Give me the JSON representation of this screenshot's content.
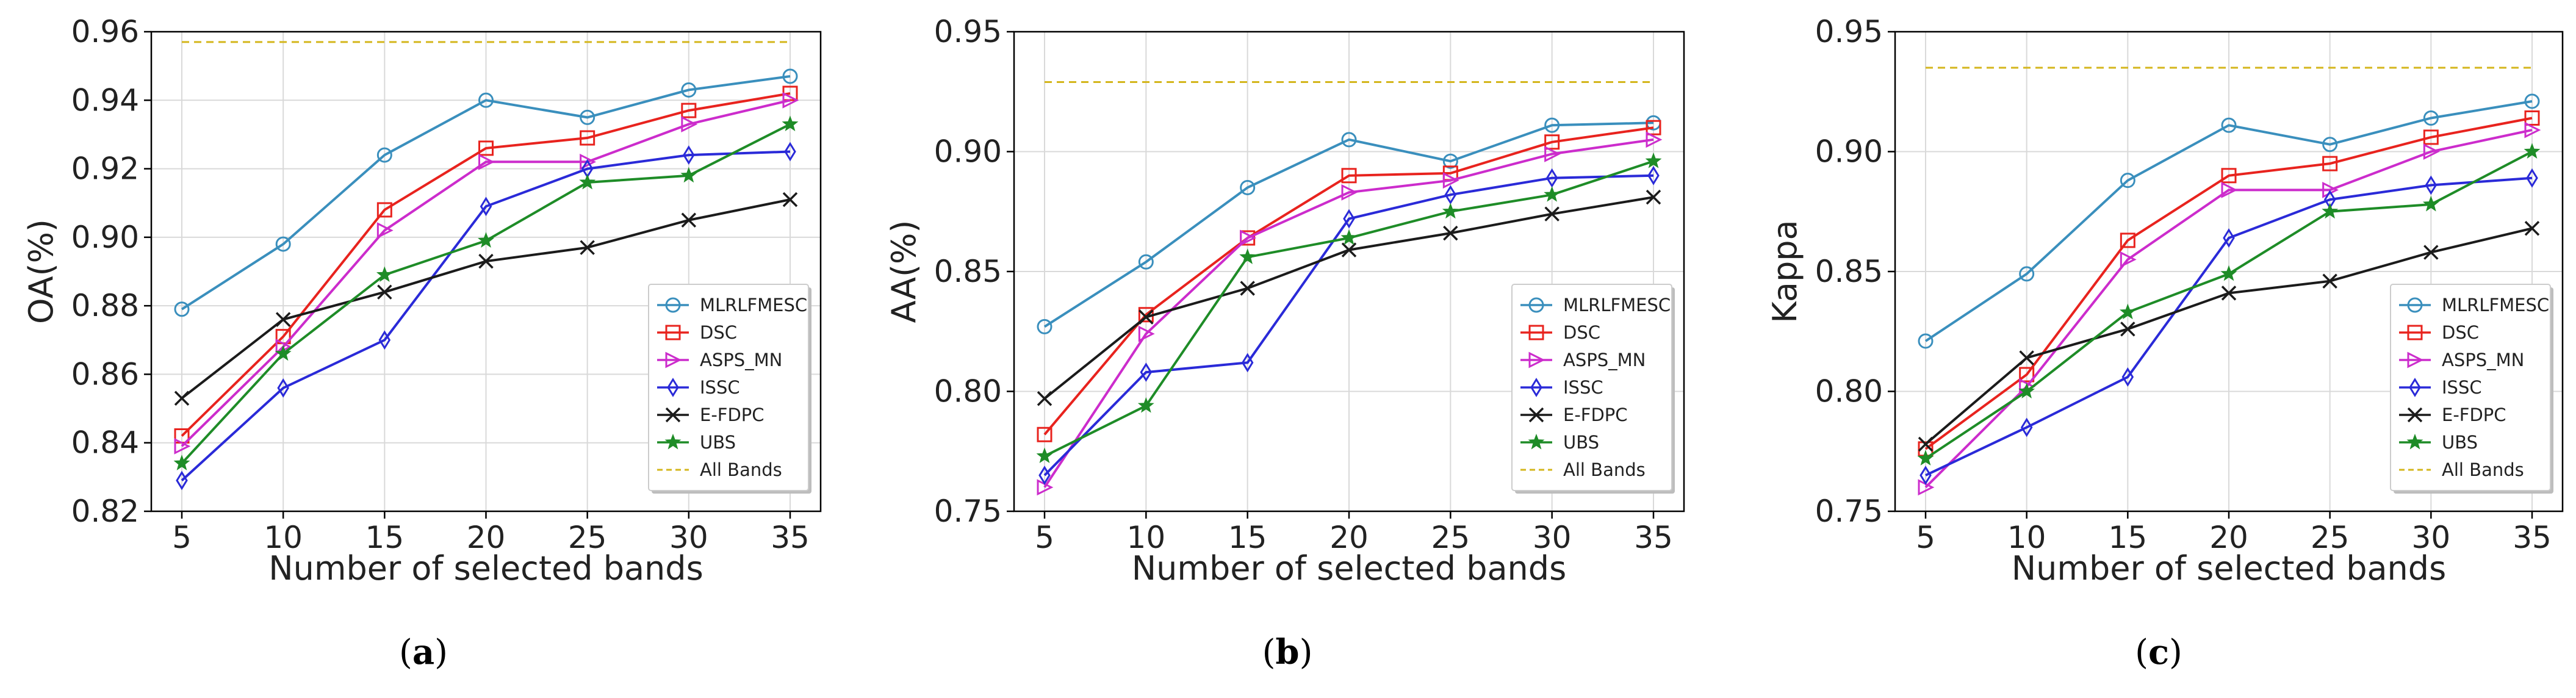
{
  "chart_data": [
    {
      "type": "line",
      "caption_letter": "a",
      "title": "",
      "xlabel": "Number of selected bands",
      "ylabel": "OA(%)",
      "x": [
        5,
        10,
        15,
        20,
        25,
        30,
        35
      ],
      "xlim": [
        5,
        35
      ],
      "ylim": [
        0.82,
        0.96
      ],
      "yticks": [
        "0.82",
        "0.84",
        "0.86",
        "0.88",
        "0.90",
        "0.92",
        "0.94",
        "0.96"
      ],
      "grid": true,
      "legend_position": "lower-right",
      "reference": {
        "name": "All Bands",
        "value": 0.957
      },
      "series": [
        {
          "name": "MLRLFMESC",
          "values": [
            0.879,
            0.898,
            0.924,
            0.94,
            0.935,
            0.943,
            0.947
          ]
        },
        {
          "name": "DSC",
          "values": [
            0.842,
            0.871,
            0.908,
            0.926,
            0.929,
            0.937,
            0.942
          ]
        },
        {
          "name": "ASPS_MN",
          "values": [
            0.839,
            0.868,
            0.902,
            0.922,
            0.922,
            0.933,
            0.94
          ]
        },
        {
          "name": "ISSC",
          "values": [
            0.829,
            0.856,
            0.87,
            0.909,
            0.92,
            0.924,
            0.925
          ]
        },
        {
          "name": "E-FDPC",
          "values": [
            0.853,
            0.876,
            0.884,
            0.893,
            0.897,
            0.905,
            0.911
          ]
        },
        {
          "name": "UBS",
          "values": [
            0.834,
            0.866,
            0.889,
            0.899,
            0.916,
            0.918,
            0.933
          ]
        }
      ]
    },
    {
      "type": "line",
      "caption_letter": "b",
      "title": "",
      "xlabel": "Number of selected bands",
      "ylabel": "AA(%)",
      "x": [
        5,
        10,
        15,
        20,
        25,
        30,
        35
      ],
      "xlim": [
        5,
        35
      ],
      "ylim": [
        0.75,
        0.95
      ],
      "yticks": [
        "0.75",
        "0.80",
        "0.85",
        "0.90",
        "0.95"
      ],
      "grid": true,
      "legend_position": "lower-right",
      "reference": {
        "name": "All Bands",
        "value": 0.929
      },
      "series": [
        {
          "name": "MLRLFMESC",
          "values": [
            0.827,
            0.854,
            0.885,
            0.905,
            0.896,
            0.911,
            0.912
          ]
        },
        {
          "name": "DSC",
          "values": [
            0.782,
            0.832,
            0.864,
            0.89,
            0.891,
            0.904,
            0.91
          ]
        },
        {
          "name": "ASPS_MN",
          "values": [
            0.76,
            0.824,
            0.864,
            0.883,
            0.888,
            0.899,
            0.905
          ]
        },
        {
          "name": "ISSC",
          "values": [
            0.765,
            0.808,
            0.812,
            0.872,
            0.882,
            0.889,
            0.89
          ]
        },
        {
          "name": "E-FDPC",
          "values": [
            0.797,
            0.831,
            0.843,
            0.859,
            0.866,
            0.874,
            0.881
          ]
        },
        {
          "name": "UBS",
          "values": [
            0.773,
            0.794,
            0.856,
            0.864,
            0.875,
            0.882,
            0.896
          ]
        }
      ]
    },
    {
      "type": "line",
      "caption_letter": "c",
      "title": "",
      "xlabel": "Number of selected bands",
      "ylabel": "Kappa",
      "x": [
        5,
        10,
        15,
        20,
        25,
        30,
        35
      ],
      "xlim": [
        5,
        35
      ],
      "ylim": [
        0.75,
        0.95
      ],
      "yticks": [
        "0.75",
        "0.80",
        "0.85",
        "0.90",
        "0.95"
      ],
      "grid": true,
      "legend_position": "lower-right",
      "reference": {
        "name": "All Bands",
        "value": 0.935
      },
      "series": [
        {
          "name": "MLRLFMESC",
          "values": [
            0.821,
            0.849,
            0.888,
            0.911,
            0.903,
            0.914,
            0.921
          ]
        },
        {
          "name": "DSC",
          "values": [
            0.776,
            0.807,
            0.863,
            0.89,
            0.895,
            0.906,
            0.914
          ]
        },
        {
          "name": "ASPS_MN",
          "values": [
            0.76,
            0.802,
            0.855,
            0.884,
            0.884,
            0.9,
            0.909
          ]
        },
        {
          "name": "ISSC",
          "values": [
            0.765,
            0.785,
            0.806,
            0.864,
            0.88,
            0.886,
            0.889
          ]
        },
        {
          "name": "E-FDPC",
          "values": [
            0.778,
            0.814,
            0.826,
            0.841,
            0.846,
            0.858,
            0.868
          ]
        },
        {
          "name": "UBS",
          "values": [
            0.772,
            0.8,
            0.833,
            0.849,
            0.875,
            0.878,
            0.9
          ]
        }
      ]
    }
  ],
  "styles": {
    "series_colors": {
      "MLRLFMESC": "#3a8fbd",
      "DSC": "#e8231e",
      "ASPS_MN": "#cc2ccc",
      "ISSC": "#2a2ad8",
      "E-FDPC": "#1b1b1b",
      "UBS": "#1e8c27",
      "All Bands": "#d4b61c"
    },
    "series_markers": {
      "MLRLFMESC": "circle",
      "DSC": "square",
      "ASPS_MN": "triangle-right",
      "ISSC": "diamond",
      "E-FDPC": "x",
      "UBS": "star"
    },
    "grid_color": "#d9d9d9",
    "axis_color": "#000000"
  }
}
